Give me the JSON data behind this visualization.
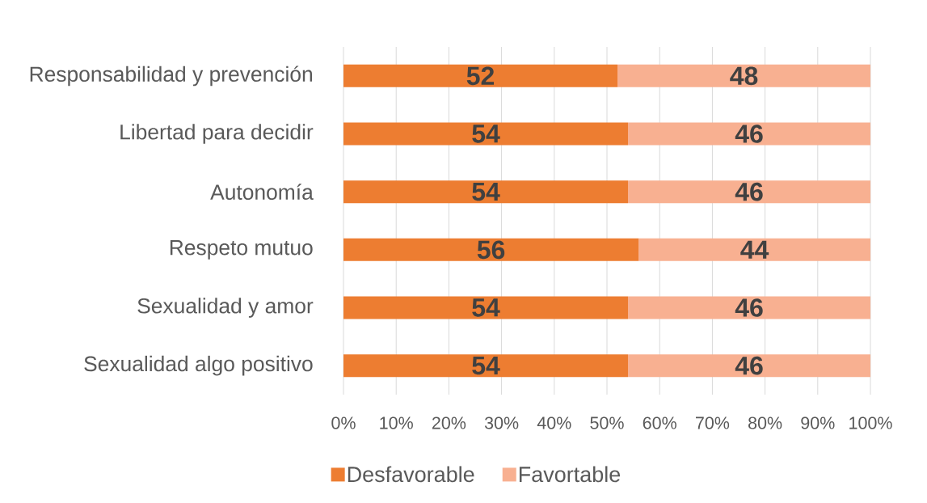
{
  "chart_data": {
    "type": "bar",
    "orientation": "horizontal",
    "stacked": true,
    "categories": [
      "Responsabilidad y prevención",
      "Libertad para decidir",
      "Autonomía",
      "Respeto mutuo",
      "Sexualidad y amor",
      "Sexualidad algo positivo"
    ],
    "series": [
      {
        "name": "Desfavorable",
        "color": "#ed7d31",
        "values": [
          52,
          54,
          54,
          56,
          54,
          54
        ]
      },
      {
        "name": "Favortable",
        "color": "#f8b091",
        "values": [
          48,
          46,
          46,
          44,
          46,
          46
        ]
      }
    ],
    "xlim": [
      0,
      100
    ],
    "xticks": [
      {
        "value": 0,
        "label": "0%"
      },
      {
        "value": 10,
        "label": "10%"
      },
      {
        "value": 20,
        "label": "20%"
      },
      {
        "value": 30,
        "label": "30%"
      },
      {
        "value": 40,
        "label": "40%"
      },
      {
        "value": 50,
        "label": "50%"
      },
      {
        "value": 60,
        "label": "60%"
      },
      {
        "value": 70,
        "label": "70%"
      },
      {
        "value": 80,
        "label": "80%"
      },
      {
        "value": 90,
        "label": "90%"
      },
      {
        "value": 100,
        "label": "100%"
      }
    ],
    "grid": "x",
    "legend": "bottom",
    "data_labels": true
  }
}
